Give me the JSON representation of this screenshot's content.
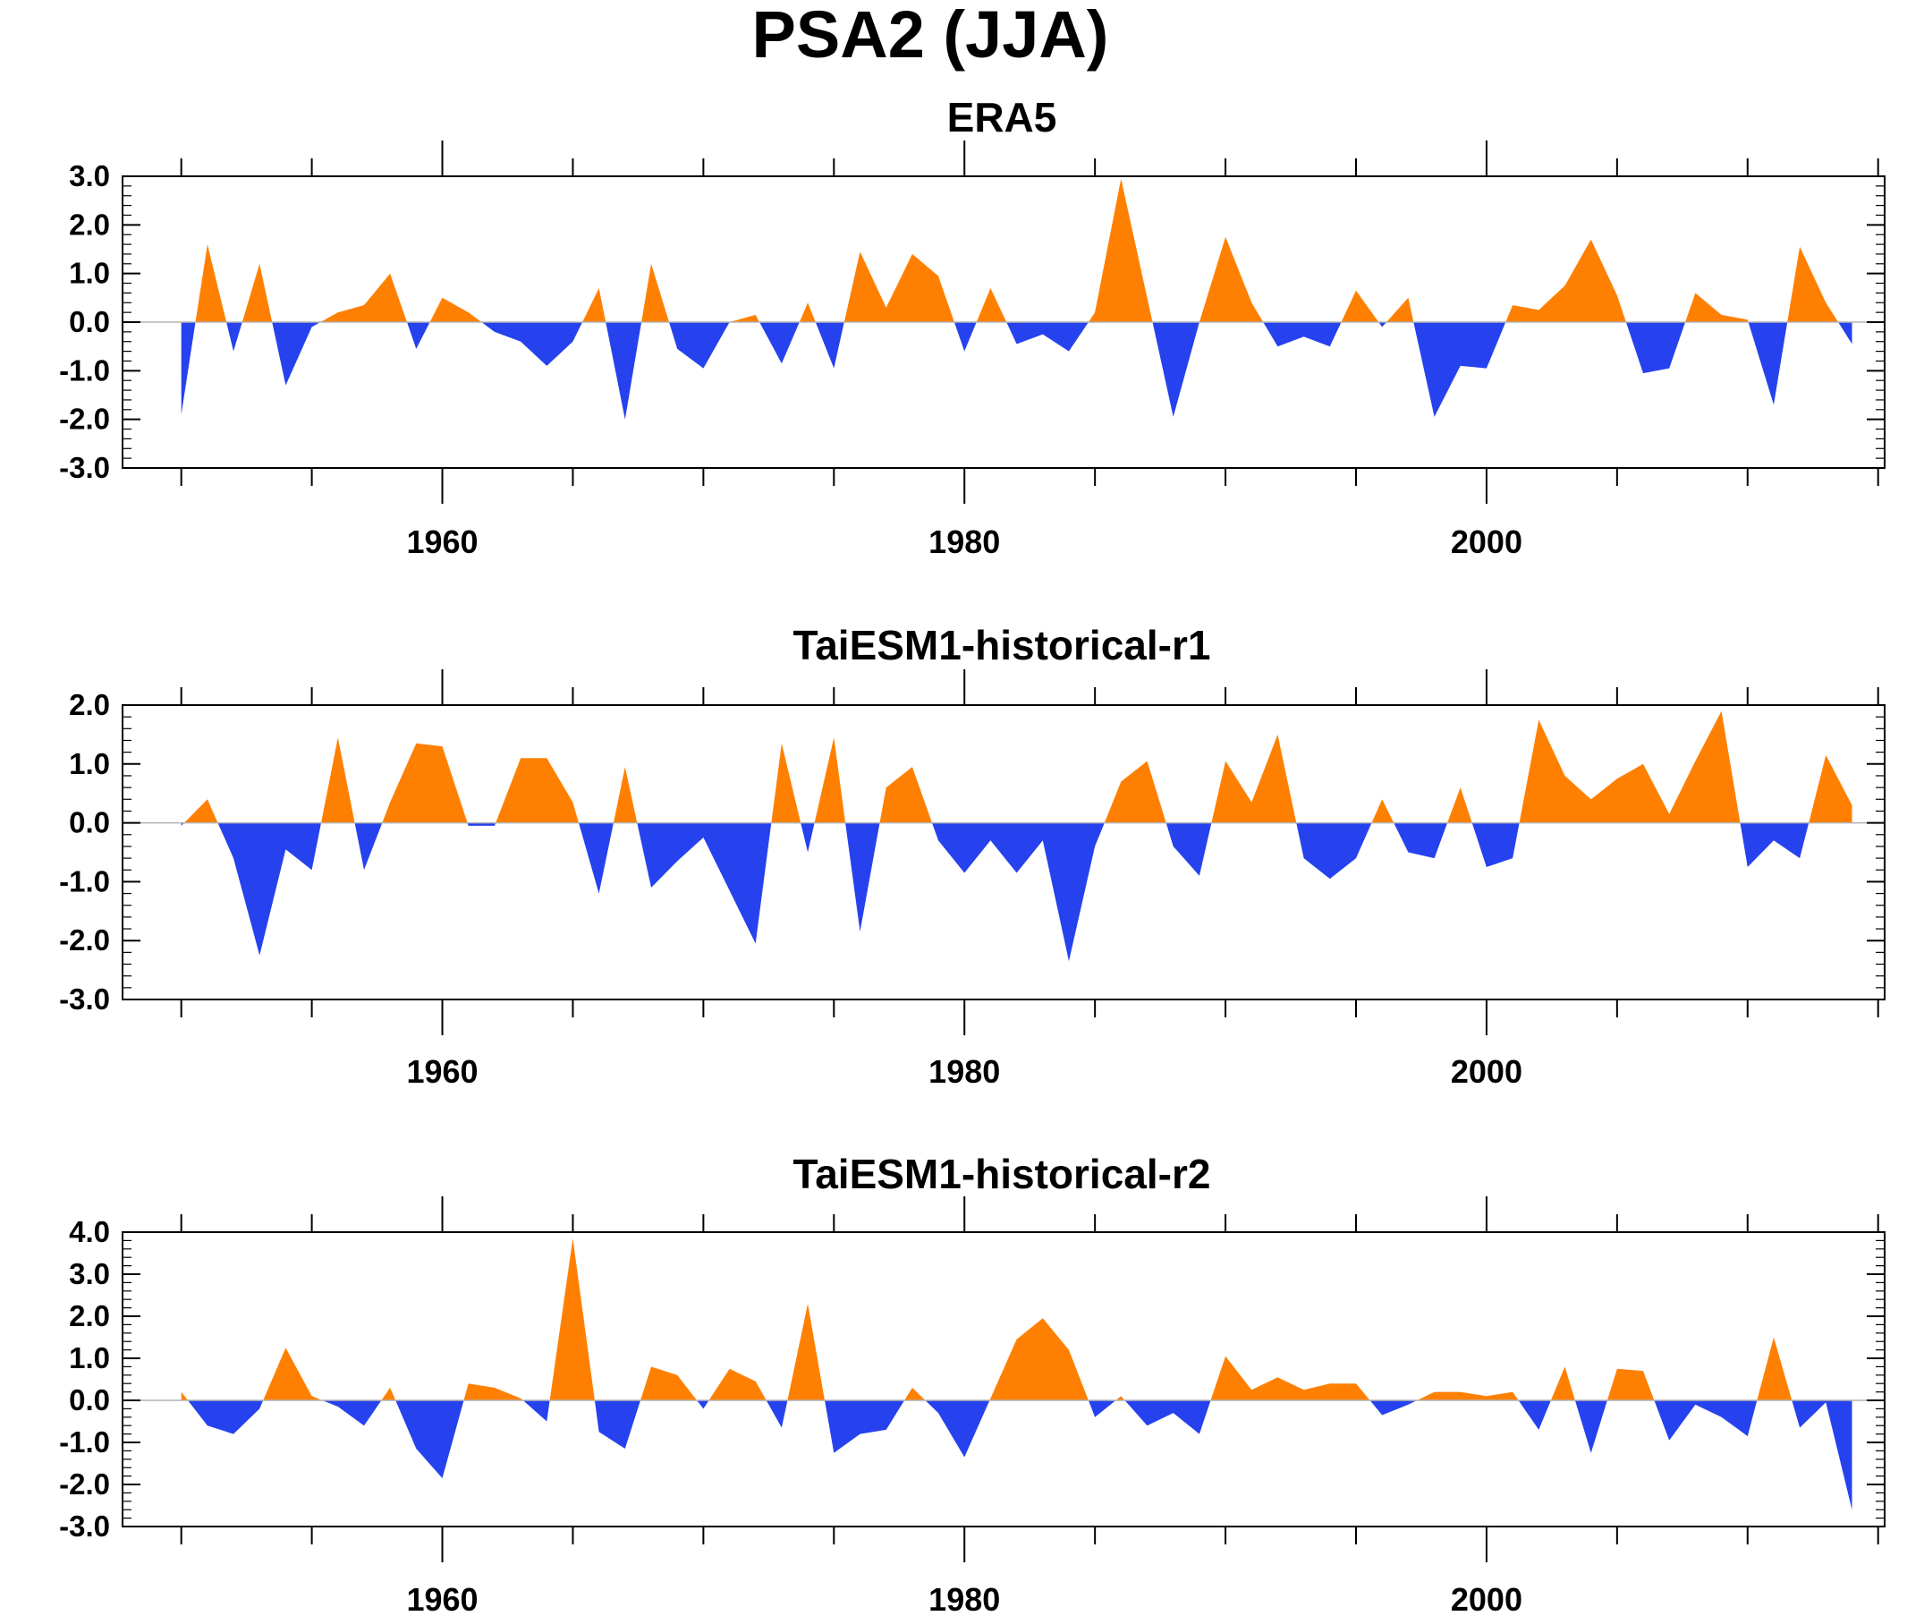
{
  "title": "PSA2 (JJA)",
  "colors": {
    "positive": "#ff8000",
    "negative": "#2642ee",
    "axis": "#000000",
    "zero_line": "#b3b3b3"
  },
  "chart_data": [
    {
      "type": "area",
      "title": "ERA5",
      "xlabel": "",
      "ylabel": "",
      "xlim": [
        1947.75,
        2015.25
      ],
      "ylim": [
        -3.0,
        3.0
      ],
      "yticks": [
        "3.0",
        "2.0",
        "1.0",
        "0.0",
        "-1.0",
        "-2.0",
        "-3.0"
      ],
      "xticks": [
        "1960",
        "1980",
        "2000"
      ],
      "grid": false,
      "legend": "none",
      "x": [
        1950,
        1951,
        1952,
        1953,
        1954,
        1955,
        1956,
        1957,
        1958,
        1959,
        1960,
        1961,
        1962,
        1963,
        1964,
        1965,
        1966,
        1967,
        1968,
        1969,
        1970,
        1971,
        1972,
        1973,
        1974,
        1975,
        1976,
        1977,
        1978,
        1979,
        1980,
        1981,
        1982,
        1983,
        1984,
        1985,
        1986,
        1987,
        1988,
        1989,
        1990,
        1991,
        1992,
        1993,
        1994,
        1995,
        1996,
        1997,
        1998,
        1999,
        2000,
        2001,
        2002,
        2003,
        2004,
        2005,
        2006,
        2007,
        2008,
        2009,
        2010,
        2011,
        2012,
        2013,
        2014
      ],
      "values": [
        -1.9,
        1.6,
        -0.6,
        1.2,
        -1.3,
        -0.1,
        0.2,
        0.35,
        1.0,
        -0.55,
        0.5,
        0.2,
        -0.2,
        -0.4,
        -0.9,
        -0.4,
        0.7,
        -2.0,
        1.2,
        -0.55,
        -0.95,
        0.0,
        0.15,
        -0.85,
        0.4,
        -0.95,
        1.45,
        0.3,
        1.4,
        0.95,
        -0.6,
        0.7,
        -0.45,
        -0.25,
        -0.6,
        0.2,
        2.95,
        0.5,
        -1.95,
        0.0,
        1.75,
        0.4,
        -0.5,
        -0.3,
        -0.5,
        0.65,
        -0.1,
        0.5,
        -1.95,
        -0.9,
        -0.95,
        0.35,
        0.25,
        0.75,
        1.7,
        0.55,
        -1.05,
        -0.95,
        0.6,
        0.15,
        0.05,
        -1.7,
        1.55,
        0.4,
        -0.45
      ]
    },
    {
      "type": "area",
      "title": "TaiESM1-historical-r1",
      "xlabel": "",
      "ylabel": "",
      "xlim": [
        1947.75,
        2015.25
      ],
      "ylim": [
        -3.0,
        2.0
      ],
      "yticks": [
        "2.0",
        "1.0",
        "0.0",
        "-1.0",
        "-2.0",
        "-3.0"
      ],
      "xticks": [
        "1960",
        "1980",
        "2000"
      ],
      "grid": false,
      "legend": "none",
      "x": [
        1950,
        1951,
        1952,
        1953,
        1954,
        1955,
        1956,
        1957,
        1958,
        1959,
        1960,
        1961,
        1962,
        1963,
        1964,
        1965,
        1966,
        1967,
        1968,
        1969,
        1970,
        1971,
        1972,
        1973,
        1974,
        1975,
        1976,
        1977,
        1978,
        1979,
        1980,
        1981,
        1982,
        1983,
        1984,
        1985,
        1986,
        1987,
        1988,
        1989,
        1990,
        1991,
        1992,
        1993,
        1994,
        1995,
        1996,
        1997,
        1998,
        1999,
        2000,
        2001,
        2002,
        2003,
        2004,
        2005,
        2006,
        2007,
        2008,
        2009,
        2010,
        2011,
        2012,
        2013,
        2014
      ],
      "values": [
        -0.05,
        0.4,
        -0.6,
        -2.25,
        -0.45,
        -0.8,
        1.45,
        -0.8,
        0.35,
        1.35,
        1.3,
        -0.05,
        -0.05,
        1.1,
        1.1,
        0.35,
        -1.2,
        0.95,
        -1.1,
        -0.65,
        -0.25,
        -1.15,
        -2.05,
        1.35,
        -0.5,
        1.45,
        -1.85,
        0.6,
        0.95,
        -0.3,
        -0.85,
        -0.3,
        -0.85,
        -0.3,
        -2.35,
        -0.4,
        0.7,
        1.05,
        -0.4,
        -0.9,
        1.05,
        0.35,
        1.5,
        -0.6,
        -0.95,
        -0.6,
        0.4,
        -0.5,
        -0.6,
        0.6,
        -0.75,
        -0.6,
        1.75,
        0.8,
        0.4,
        0.75,
        1.0,
        0.15,
        1.05,
        1.9,
        -0.75,
        -0.3,
        -0.6,
        1.15,
        0.3
      ]
    },
    {
      "type": "area",
      "title": "TaiESM1-historical-r2",
      "xlabel": "",
      "ylabel": "",
      "xlim": [
        1947.75,
        2015.25
      ],
      "ylim": [
        -3.0,
        4.0
      ],
      "yticks": [
        "4.0",
        "3.0",
        "2.0",
        "1.0",
        "0.0",
        "-1.0",
        "-2.0",
        "-3.0"
      ],
      "xticks": [
        "1960",
        "1980",
        "2000"
      ],
      "grid": false,
      "legend": "none",
      "x": [
        1950,
        1951,
        1952,
        1953,
        1954,
        1955,
        1956,
        1957,
        1958,
        1959,
        1960,
        1961,
        1962,
        1963,
        1964,
        1965,
        1966,
        1967,
        1968,
        1969,
        1970,
        1971,
        1972,
        1973,
        1974,
        1975,
        1976,
        1977,
        1978,
        1979,
        1980,
        1981,
        1982,
        1983,
        1984,
        1985,
        1986,
        1987,
        1988,
        1989,
        1990,
        1991,
        1992,
        1993,
        1994,
        1995,
        1996,
        1997,
        1998,
        1999,
        2000,
        2001,
        2002,
        2003,
        2004,
        2005,
        2006,
        2007,
        2008,
        2009,
        2010,
        2011,
        2012,
        2013,
        2014
      ],
      "values": [
        0.2,
        -0.6,
        -0.8,
        -0.2,
        1.25,
        0.1,
        -0.15,
        -0.6,
        0.3,
        -1.15,
        -1.85,
        0.4,
        0.3,
        0.05,
        -0.5,
        3.85,
        -0.75,
        -1.15,
        0.8,
        0.6,
        -0.2,
        0.75,
        0.45,
        -0.65,
        2.3,
        -1.25,
        -0.8,
        -0.7,
        0.3,
        -0.3,
        -1.35,
        0.05,
        1.45,
        1.95,
        1.2,
        -0.4,
        0.1,
        -0.6,
        -0.3,
        -0.8,
        1.05,
        0.25,
        0.55,
        0.25,
        0.4,
        0.4,
        -0.35,
        -0.1,
        0.2,
        0.2,
        0.1,
        0.2,
        -0.7,
        0.8,
        -1.25,
        0.75,
        0.7,
        -0.95,
        -0.1,
        -0.4,
        -0.85,
        1.5,
        -0.65,
        -0.05,
        -2.6
      ]
    }
  ]
}
